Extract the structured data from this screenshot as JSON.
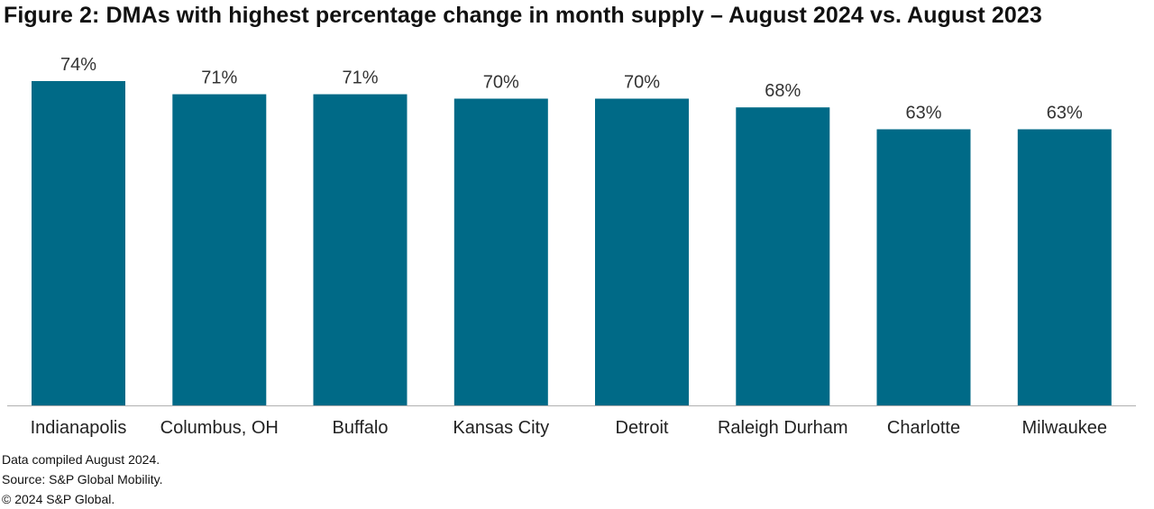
{
  "chart_data": {
    "type": "bar",
    "title": "Figure 2: DMAs with highest percentage change in month supply – August 2024 vs. August 2023",
    "categories": [
      "Indianapolis",
      "Columbus, OH",
      "Buffalo",
      "Kansas City",
      "Detroit",
      "Raleigh Durham",
      "Charlotte",
      "Milwaukee"
    ],
    "values": [
      74,
      71,
      71,
      70,
      70,
      68,
      63,
      63
    ],
    "value_labels": [
      "74%",
      "71%",
      "71%",
      "70%",
      "70%",
      "68%",
      "63%",
      "63%"
    ],
    "unit": "%",
    "xlabel": "",
    "ylabel": "",
    "bar_color": "#006a87",
    "grid": false,
    "legend": "none"
  },
  "footnotes": {
    "compiled": "Data compiled August 2024.",
    "source": "Source: S&P Global Mobility.",
    "copyright": "© 2024 S&P Global."
  }
}
